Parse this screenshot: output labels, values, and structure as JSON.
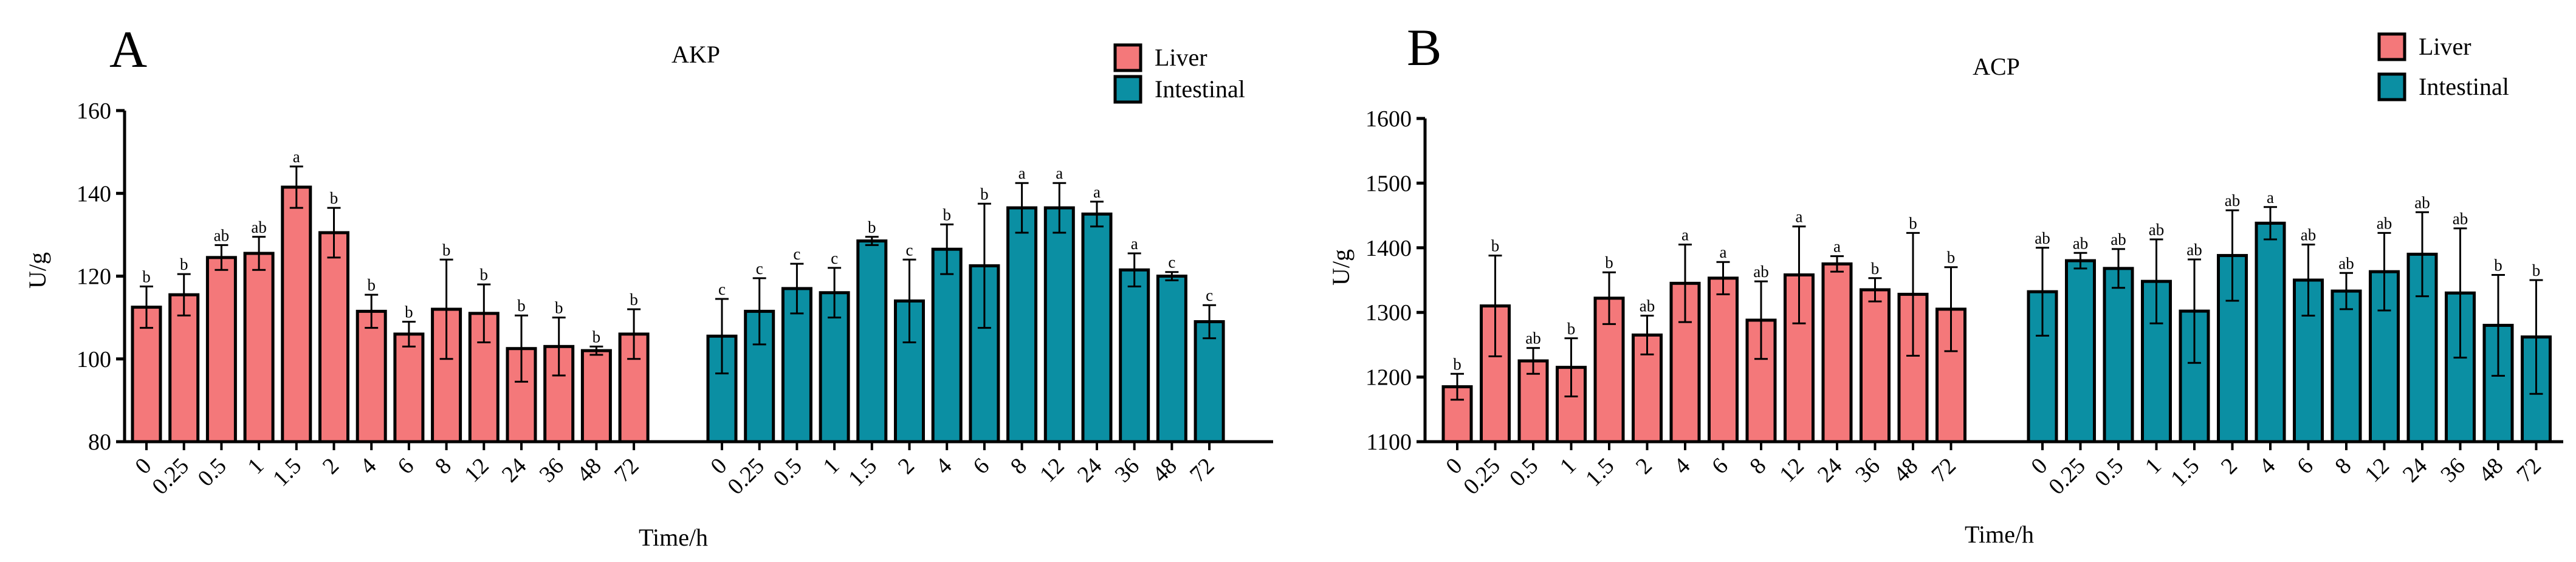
{
  "chart_data": [
    {
      "type": "bar",
      "panel_label": "A",
      "title": "AKP",
      "xlabel": "Time/h",
      "ylabel": "U/g",
      "ylim": [
        80,
        160
      ],
      "yticks": [
        80,
        100,
        120,
        140,
        160
      ],
      "legend": {
        "placement": "top-right",
        "entries": [
          "Liver",
          "Intestinal"
        ]
      },
      "categories": [
        "0",
        "0.25",
        "0.5",
        "1",
        "1.5",
        "2",
        "4",
        "6",
        "8",
        "12",
        "24",
        "36",
        "48",
        "72"
      ],
      "series": [
        {
          "name": "Liver",
          "color": "#f4787a",
          "values": [
            112.5,
            115.5,
            124.5,
            125.5,
            141.5,
            130.5,
            111.5,
            106,
            112,
            111,
            102.5,
            103,
            102,
            106
          ],
          "errors": [
            5,
            5,
            3,
            4,
            5,
            6,
            4,
            3,
            12,
            7,
            8,
            7,
            1,
            6
          ],
          "letters": [
            "b",
            "b",
            "ab",
            "ab",
            "a",
            "b",
            "b",
            "b",
            "b",
            "b",
            "b",
            "b",
            "b",
            "b"
          ]
        },
        {
          "name": "Intestinal",
          "color": "#0b8fa3",
          "values": [
            105.5,
            111.5,
            117,
            116,
            128.5,
            114,
            126.5,
            122.5,
            136.5,
            136.5,
            135,
            121.5,
            120,
            109
          ],
          "errors": [
            9,
            8,
            6,
            6,
            1,
            10,
            6,
            15,
            6,
            6,
            3,
            4,
            1,
            4
          ],
          "letters": [
            "c",
            "c",
            "c",
            "c",
            "b",
            "c",
            "b",
            "b",
            "a",
            "a",
            "a",
            "a",
            "c",
            "c"
          ]
        }
      ]
    },
    {
      "type": "bar",
      "panel_label": "B",
      "title": "ACP",
      "xlabel": "Time/h",
      "ylabel": "U/g",
      "ylim": [
        1100,
        1600
      ],
      "yticks": [
        1100,
        1200,
        1300,
        1400,
        1500,
        1600
      ],
      "legend": {
        "placement": "top-right",
        "entries": [
          "Liver",
          "Intestinal"
        ]
      },
      "categories": [
        "0",
        "0.25",
        "0.5",
        "1",
        "1.5",
        "2",
        "4",
        "6",
        "8",
        "12",
        "24",
        "36",
        "48",
        "72"
      ],
      "series": [
        {
          "name": "Liver",
          "color": "#f4787a",
          "values": [
            1185,
            1310,
            1225,
            1215,
            1322,
            1265,
            1345,
            1353,
            1288,
            1358,
            1375,
            1335,
            1328,
            1305
          ],
          "errors": [
            20,
            78,
            20,
            45,
            40,
            30,
            60,
            25,
            60,
            75,
            12,
            18,
            95,
            65
          ],
          "letters": [
            "b",
            "b",
            "ab",
            "b",
            "b",
            "ab",
            "a",
            "a",
            "ab",
            "a",
            "a",
            "b",
            "b",
            "b"
          ]
        },
        {
          "name": "Intestinal",
          "color": "#0b8fa3",
          "values": [
            1332,
            1380,
            1368,
            1348,
            1302,
            1388,
            1438,
            1350,
            1333,
            1363,
            1390,
            1330,
            1280,
            1262
          ],
          "errors": [
            68,
            12,
            30,
            65,
            80,
            70,
            25,
            55,
            28,
            60,
            65,
            100,
            78,
            88
          ],
          "letters": [
            "ab",
            "ab",
            "ab",
            "ab",
            "ab",
            "ab",
            "a",
            "ab",
            "ab",
            "ab",
            "ab",
            "ab",
            "b",
            "b"
          ]
        }
      ]
    }
  ]
}
